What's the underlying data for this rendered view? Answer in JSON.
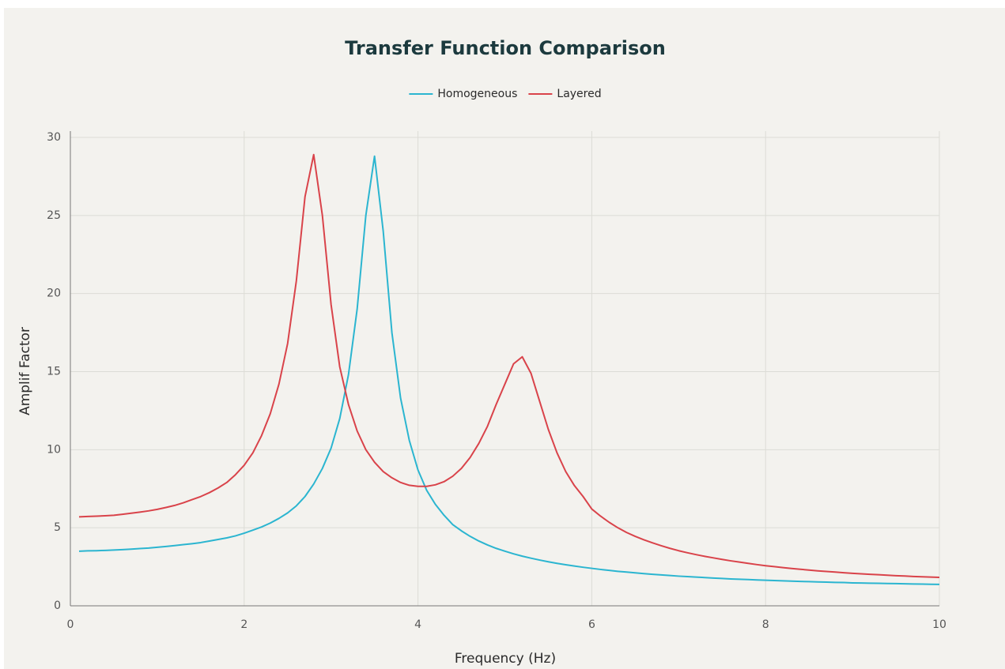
{
  "chart_data": {
    "type": "line",
    "title": "Transfer Function Comparison",
    "xlabel": "Frequency (Hz)",
    "ylabel": "Amplif Factor",
    "xlim": [
      0,
      10
    ],
    "ylim": [
      0,
      30
    ],
    "xticks": [
      0,
      2,
      4,
      6,
      8,
      10
    ],
    "yticks": [
      0,
      5,
      10,
      15,
      20,
      25,
      30
    ],
    "grid": true,
    "legend": "top",
    "x": [
      0.1,
      0.2,
      0.3,
      0.4,
      0.5,
      0.6,
      0.7,
      0.8,
      0.9,
      1.0,
      1.1,
      1.2,
      1.3,
      1.4,
      1.5,
      1.6,
      1.7,
      1.8,
      1.9,
      2.0,
      2.1,
      2.2,
      2.3,
      2.4,
      2.5,
      2.6,
      2.7,
      2.8,
      2.9,
      3.0,
      3.1,
      3.2,
      3.3,
      3.4,
      3.5,
      3.6,
      3.7,
      3.8,
      3.9,
      4.0,
      4.1,
      4.2,
      4.3,
      4.4,
      4.5,
      4.6,
      4.7,
      4.8,
      4.9,
      5.0,
      5.1,
      5.2,
      5.3,
      5.4,
      5.5,
      5.6,
      5.7,
      5.8,
      5.9,
      6.0,
      6.1,
      6.2,
      6.3,
      6.4,
      6.5,
      6.6,
      6.7,
      6.8,
      6.9,
      7.0,
      7.1,
      7.2,
      7.3,
      7.4,
      7.5,
      7.6,
      7.7,
      7.8,
      7.9,
      8.0,
      8.1,
      8.2,
      8.3,
      8.4,
      8.5,
      8.6,
      8.7,
      8.8,
      8.9,
      9.0,
      9.1,
      9.2,
      9.3,
      9.4,
      9.5,
      9.6,
      9.7,
      9.8,
      9.9,
      10.0
    ],
    "series": [
      {
        "name": "Homogeneous",
        "color": "#2bb5d0",
        "values": [
          3.5,
          3.52,
          3.53,
          3.55,
          3.57,
          3.6,
          3.63,
          3.67,
          3.7,
          3.75,
          3.8,
          3.86,
          3.92,
          3.98,
          4.05,
          4.15,
          4.25,
          4.35,
          4.48,
          4.65,
          4.85,
          5.05,
          5.3,
          5.6,
          5.95,
          6.4,
          7.0,
          7.8,
          8.8,
          10.1,
          12.0,
          14.8,
          19.0,
          25.0,
          28.8,
          24.0,
          17.5,
          13.3,
          10.6,
          8.7,
          7.4,
          6.5,
          5.8,
          5.2,
          4.8,
          4.45,
          4.15,
          3.9,
          3.68,
          3.5,
          3.33,
          3.18,
          3.05,
          2.93,
          2.82,
          2.72,
          2.63,
          2.55,
          2.47,
          2.4,
          2.33,
          2.27,
          2.21,
          2.16,
          2.11,
          2.06,
          2.02,
          1.98,
          1.94,
          1.9,
          1.87,
          1.84,
          1.81,
          1.78,
          1.75,
          1.72,
          1.7,
          1.68,
          1.66,
          1.64,
          1.62,
          1.6,
          1.58,
          1.56,
          1.55,
          1.53,
          1.52,
          1.5,
          1.49,
          1.47,
          1.46,
          1.45,
          1.44,
          1.43,
          1.42,
          1.41,
          1.4,
          1.39,
          1.38,
          1.37
        ]
      },
      {
        "name": "Layered",
        "color": "#d9434a",
        "values": [
          5.7,
          5.72,
          5.74,
          5.77,
          5.8,
          5.86,
          5.93,
          6.0,
          6.08,
          6.18,
          6.3,
          6.43,
          6.6,
          6.8,
          7.0,
          7.25,
          7.55,
          7.9,
          8.4,
          9.0,
          9.8,
          10.9,
          12.3,
          14.2,
          16.8,
          20.8,
          26.2,
          28.9,
          25.0,
          19.3,
          15.3,
          12.9,
          11.2,
          10.0,
          9.2,
          8.6,
          8.2,
          7.9,
          7.72,
          7.65,
          7.65,
          7.75,
          7.95,
          8.3,
          8.8,
          9.5,
          10.4,
          11.5,
          12.9,
          14.2,
          15.5,
          15.95,
          14.9,
          13.1,
          11.3,
          9.8,
          8.6,
          7.7,
          7.0,
          6.2,
          5.75,
          5.35,
          5.0,
          4.7,
          4.45,
          4.23,
          4.03,
          3.85,
          3.68,
          3.53,
          3.4,
          3.28,
          3.17,
          3.07,
          2.97,
          2.88,
          2.8,
          2.72,
          2.64,
          2.57,
          2.51,
          2.45,
          2.39,
          2.34,
          2.29,
          2.24,
          2.2,
          2.16,
          2.12,
          2.08,
          2.05,
          2.02,
          1.99,
          1.96,
          1.93,
          1.91,
          1.88,
          1.86,
          1.84,
          1.82
        ]
      }
    ]
  }
}
